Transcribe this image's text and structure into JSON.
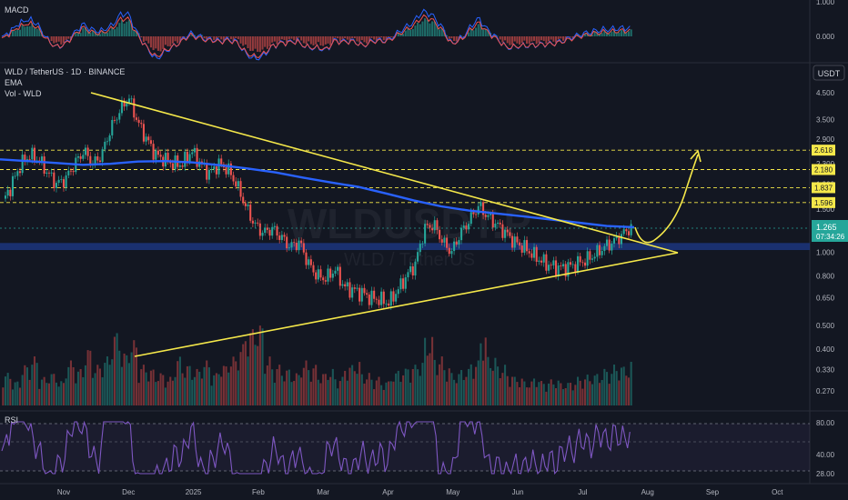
{
  "header": {
    "pair": "WLD / TetherUS · 1D · BINANCE",
    "indicator_ema": "EMA",
    "indicator_vol": "Vol - WLD",
    "currency_button": "USDT",
    "watermark_symbol": "WLDUSDT.P",
    "watermark_name": "WLD / TetherUS"
  },
  "macd": {
    "label": "MACD",
    "ticks": [
      "1.000",
      "0.000"
    ]
  },
  "rsi": {
    "label": "RSI",
    "ticks": [
      "80.00",
      "40.00",
      "28.00"
    ]
  },
  "colors": {
    "background": "#131722",
    "up": "#26a69a",
    "down": "#ef5350",
    "ema": "#2962ff",
    "trendline": "#f5e84a",
    "rsi_line": "#7e57c2",
    "support_band": "#1e3a8a"
  },
  "chart_data": {
    "type": "candlestick",
    "scale": "log",
    "y_ticks": [
      "4.500",
      "3.500",
      "2.900",
      "2.300",
      "1.900",
      "1.500",
      "1.000",
      "0.800",
      "0.650",
      "0.500",
      "0.400",
      "0.330",
      "0.270"
    ],
    "x_ticks": [
      "Nov",
      "Dec",
      "2025",
      "Feb",
      "Mar",
      "Apr",
      "May",
      "Jun",
      "Jul",
      "Aug",
      "Sep",
      "Oct"
    ],
    "levels": [
      {
        "value": 2.618,
        "label": "2.618"
      },
      {
        "value": 2.18,
        "label": "2.180"
      },
      {
        "value": 1.837,
        "label": "1.837"
      },
      {
        "value": 1.596,
        "label": "1.596"
      }
    ],
    "last_price": {
      "value": 1.265,
      "label": "1.265",
      "countdown": "07:34:26"
    },
    "support_zone": [
      1.02,
      1.09
    ],
    "ohlc_close_path": [
      1.6,
      1.9,
      2.3,
      2.5,
      2.4,
      2.1,
      1.9,
      2.0,
      2.3,
      2.6,
      2.3,
      2.5,
      3.2,
      3.8,
      4.3,
      3.4,
      2.9,
      2.5,
      2.4,
      2.3,
      2.3,
      2.6,
      2.3,
      2.1,
      2.3,
      2.2,
      1.9,
      1.55,
      1.3,
      1.2,
      1.25,
      1.15,
      1.05,
      1.1,
      0.9,
      0.8,
      0.78,
      0.85,
      0.72,
      0.7,
      0.68,
      0.65,
      0.64,
      0.62,
      0.7,
      0.8,
      0.9,
      1.25,
      1.3,
      1.1,
      1.0,
      1.2,
      1.35,
      1.55,
      1.4,
      1.3,
      1.2,
      1.1,
      1.05,
      0.98,
      0.92,
      0.88,
      0.86,
      0.87,
      0.9,
      0.93,
      0.98,
      1.05,
      1.1,
      1.18,
      1.265
    ],
    "ema_path": [
      2.4,
      2.36,
      2.32,
      2.28,
      2.3,
      2.35,
      2.36,
      2.33,
      2.27,
      2.2,
      2.12,
      2.02,
      1.93,
      1.85,
      1.74,
      1.63,
      1.54,
      1.48,
      1.44,
      1.4,
      1.36,
      1.32,
      1.28,
      1.265
    ],
    "projection_targets": [
      1.0,
      2.618
    ],
    "volume_relative": [
      0.4,
      0.3,
      0.5,
      0.6,
      0.35,
      0.4,
      0.3,
      0.55,
      0.45,
      0.7,
      0.5,
      0.6,
      0.9,
      0.65,
      0.8,
      0.5,
      0.45,
      0.4,
      0.35,
      0.6,
      0.5,
      0.45,
      0.55,
      0.4,
      0.5,
      0.6,
      0.75,
      0.95,
      1.0,
      0.6,
      0.5,
      0.45,
      0.4,
      0.55,
      0.5,
      0.4,
      0.45,
      0.35,
      0.5,
      0.55,
      0.4,
      0.35,
      0.3,
      0.4,
      0.45,
      0.5,
      0.55,
      0.85,
      0.6,
      0.5,
      0.4,
      0.45,
      0.55,
      0.9,
      0.6,
      0.5,
      0.4,
      0.35,
      0.3,
      0.35,
      0.3,
      0.32,
      0.28,
      0.3,
      0.35,
      0.38,
      0.4,
      0.45,
      0.5,
      0.48,
      0.55
    ]
  }
}
